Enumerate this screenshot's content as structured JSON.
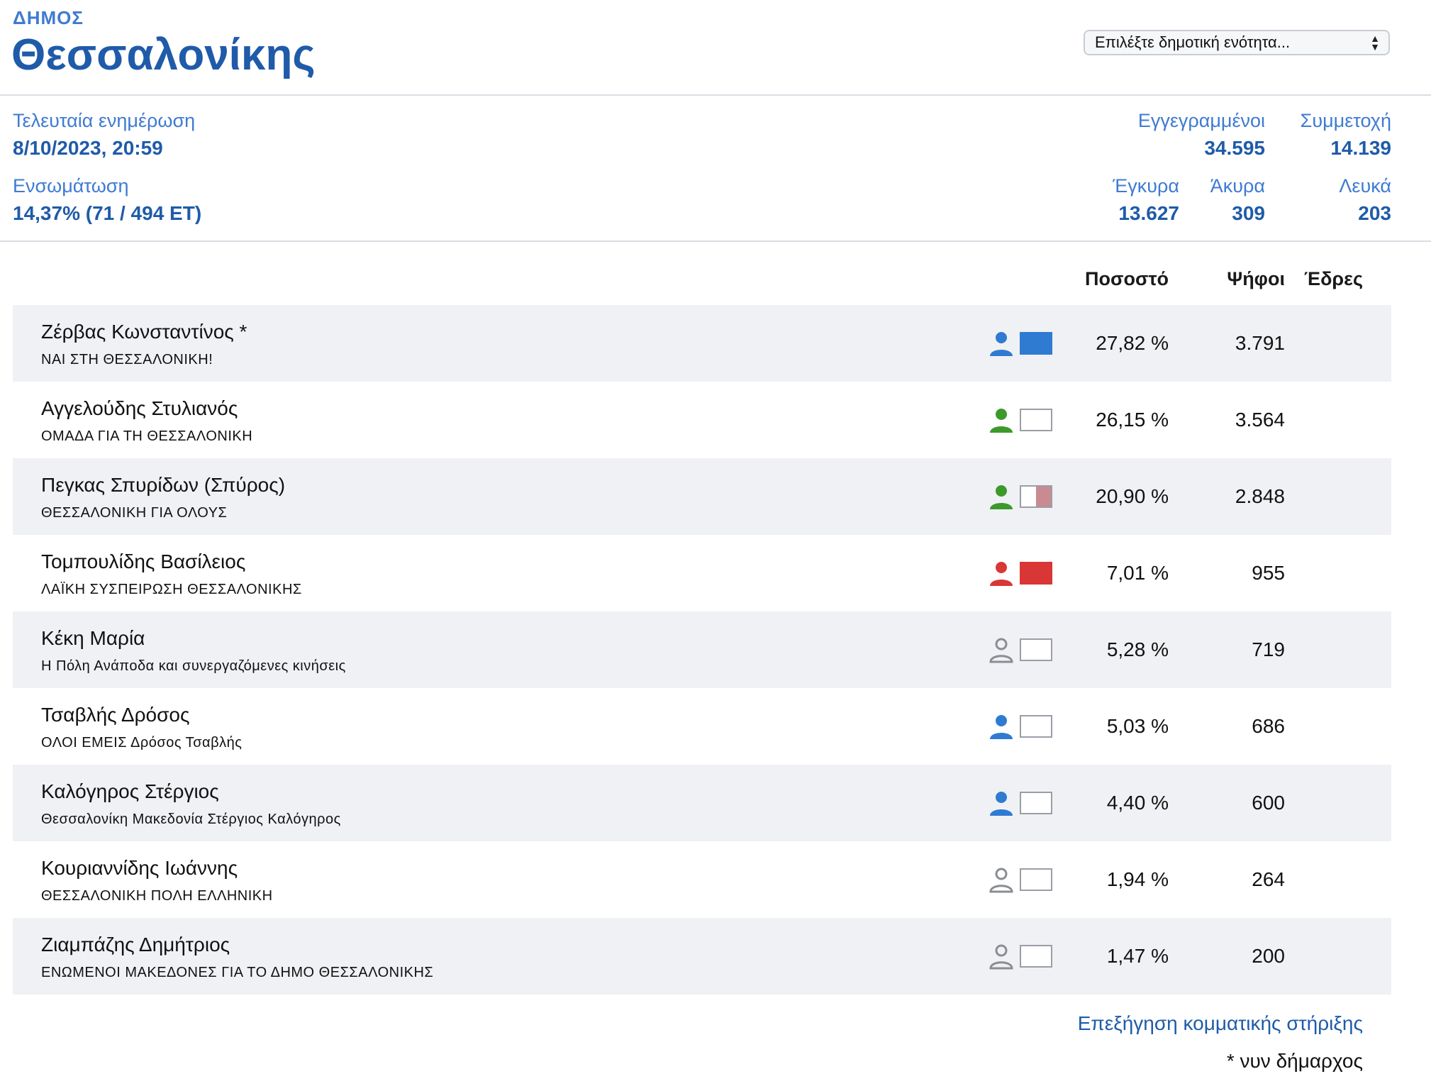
{
  "header": {
    "label": "ΔΗΜΟΣ",
    "name": "Θεσσαλονίκης",
    "select_value": "Επιλέξτε δημοτική ενότητα..."
  },
  "stats": {
    "last_update_label": "Τελευταία ενημέρωση",
    "last_update_value": "8/10/2023, 20:59",
    "integration_label": "Ενσωμάτωση",
    "integration_value": "14,37% (71 / 494 ΕΤ)",
    "registered_label": "Εγγεγραμμένοι",
    "registered_value": "34.595",
    "turnout_label": "Συμμετοχή",
    "turnout_value": "14.139",
    "valid_label": "Έγκυρα",
    "valid_value": "13.627",
    "invalid_label": "Άκυρα",
    "invalid_value": "309",
    "blank_label": "Λευκά",
    "blank_value": "203"
  },
  "table": {
    "headers": {
      "percent": "Ποσοστό",
      "votes": "Ψήφοι",
      "seats": "Έδρες"
    },
    "rows": [
      {
        "candidate": "Ζέρβας Κωνσταντίνος *",
        "party": "ΝΑΙ ΣΤΗ ΘΕΣΣΑΛΟΝΙΚΗ!",
        "percent": "27,82 %",
        "votes": "3.791",
        "seats": "",
        "icon": "person-blue-icon",
        "support": "full-blue",
        "color": "#2f7bd1"
      },
      {
        "candidate": "Αγγελούδης Στυλιανός",
        "party": "ΟΜΑΔΑ ΓΙΑ ΤΗ ΘΕΣΣΑΛΟΝΙΚΗ",
        "percent": "26,15 %",
        "votes": "3.564",
        "seats": "",
        "icon": "person-green-icon",
        "support": "empty",
        "color": "#3c9a2b"
      },
      {
        "candidate": "Πεγκας Σπυρίδων (Σπύρος)",
        "party": "ΘΕΣΣΑΛΟΝΙΚΗ ΓΙΑ ΟΛΟΥΣ",
        "percent": "20,90 %",
        "votes": "2.848",
        "seats": "",
        "icon": "person-green-icon",
        "support": "half-pink",
        "color": "#3c9a2b"
      },
      {
        "candidate": "Τομπουλίδης Βασίλειος",
        "party": "ΛΑΪΚΗ ΣΥΣΠΕΙΡΩΣΗ ΘΕΣΣΑΛΟΝΙΚΗΣ",
        "percent": "7,01 %",
        "votes": "955",
        "seats": "",
        "icon": "person-red-icon",
        "support": "full-red",
        "color": "#d93636"
      },
      {
        "candidate": "Κέκη Μαρία",
        "party": "Η Πόλη Ανάποδα και συνεργαζόμενες κινήσεις",
        "percent": "5,28 %",
        "votes": "719",
        "seats": "",
        "icon": "person-outline-icon",
        "support": "empty",
        "color": "#8a8d92"
      },
      {
        "candidate": "Τσαβλής Δρόσος",
        "party": "ΟΛΟΙ ΕΜΕΙΣ Δρόσος Τσαβλής",
        "percent": "5,03 %",
        "votes": "686",
        "seats": "",
        "icon": "person-blue-icon",
        "support": "empty",
        "color": "#2f7bd1"
      },
      {
        "candidate": "Καλόγηρος Στέργιος",
        "party": "Θεσσαλονίκη Μακεδονία Στέργιος Καλόγηρος",
        "percent": "4,40 %",
        "votes": "600",
        "seats": "",
        "icon": "person-blue-icon",
        "support": "empty",
        "color": "#2f7bd1"
      },
      {
        "candidate": "Κουριαννίδης Ιωάννης",
        "party": "ΘΕΣΣΑΛΟΝΙΚΗ ΠΟΛΗ ΕΛΛΗΝΙΚΗ",
        "percent": "1,94 %",
        "votes": "264",
        "seats": "",
        "icon": "person-outline-icon",
        "support": "empty",
        "color": "#8a8d92"
      },
      {
        "candidate": "Ζιαμπάζης Δημήτριος",
        "party": "ΕΝΩΜΕΝΟΙ ΜΑΚΕΔΟΝΕΣ ΓΙΑ ΤΟ ΔΗΜΟ ΘΕΣΣΑΛΟΝΙΚΗΣ",
        "percent": "1,47 %",
        "votes": "200",
        "seats": "",
        "icon": "person-outline-icon",
        "support": "empty",
        "color": "#8a8d92"
      }
    ]
  },
  "footer": {
    "link": "Επεξήγηση κομματικής στήριξης",
    "note": "* νυν δήμαρχος"
  }
}
